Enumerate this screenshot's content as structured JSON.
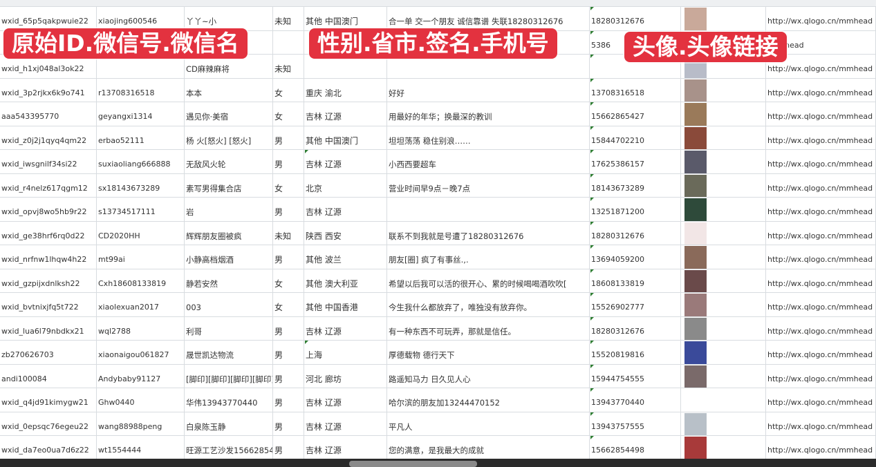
{
  "banners": [
    "原始ID.微信号.微信名",
    "性别.省市.签名.手机号",
    "头像.头像链接"
  ],
  "colors": {
    "banner": "#e3323f",
    "grid": "#d8dce0"
  },
  "rows": [
    {
      "id": "wxid_65p5qakpwuie22",
      "wx": "xiaojing600546",
      "name": "丫丫~小",
      "sex": "未知",
      "region": "其他 中国澳门",
      "sign": "合一单 交一个朋友 诚信靠谱 失联18280312676",
      "phone": "18280312676",
      "avatar": "#c9a99a",
      "url": "http://wx.qlogo.cn/mmhead"
    },
    {
      "id": "",
      "wx": "",
      "name": "",
      "sex": "",
      "region": "",
      "sign": "",
      "phone": "5386",
      "avatar": "#7b89b5",
      "url": "/mmhead"
    },
    {
      "id": "wxid_h1xj048al3ok22",
      "wx": "",
      "name": "CD麻辣麻将",
      "sex": "未知",
      "region": "",
      "sign": "",
      "phone": "",
      "avatar": "#b8bcc8",
      "url": "http://wx.qlogo.cn/mmhead"
    },
    {
      "id": "wxid_3p2rjkx6k9o741",
      "wx": "r13708316518",
      "name": "本本",
      "sex": "女",
      "region": "重庆 渝北",
      "sign": "好好",
      "phone": "13708316518",
      "avatar": "#a8928a",
      "url": "http://wx.qlogo.cn/mmhead"
    },
    {
      "id": "aaa543395770",
      "wx": "geyangxi1314",
      "name": "遇见你·美宿",
      "sex": "女",
      "region": "吉林 辽源",
      "sign": "用最好的年华；换最深的教训",
      "phone": "15662865427",
      "avatar": "#9a7a5a",
      "url": "http://wx.qlogo.cn/mmhead"
    },
    {
      "id": "wxid_z0j2j1qyq4qm22",
      "wx": "erbao52111",
      "name": "杨 火[怒火] [怒火]",
      "sex": "男",
      "region": "其他 中国澳门",
      "sign": "坦坦荡荡 稳住别浪……",
      "phone": "15844702210",
      "avatar": "#8a4a3a",
      "url": "http://wx.qlogo.cn/mmhead"
    },
    {
      "id": "wxid_iwsgnilf34si22",
      "wx": "suxiaoliang666888",
      "name": "无敌风火轮",
      "sex": "男",
      "region": "吉林 辽源",
      "sign": "小西西要超车",
      "phone": "17625386157",
      "avatar": "#5a5a6a",
      "url": "http://wx.qlogo.cn/mmhead"
    },
    {
      "id": "wxid_r4nelz617qgm12",
      "wx": "sx18143673289",
      "name": "素写男得集合店",
      "sex": "女",
      "region": "北京",
      "sign": "营业时间早9点－晚7点",
      "phone": "18143673289",
      "avatar": "#6a6a5a",
      "url": "http://wx.qlogo.cn/mmhead"
    },
    {
      "id": "wxid_opvj8wo5hb9r22",
      "wx": "s13734517111",
      "name": "岩",
      "sex": "男",
      "region": "吉林 辽源",
      "sign": "",
      "phone": "13251871200",
      "avatar": "#2e4a3a",
      "url": "http://wx.qlogo.cn/mmhead"
    },
    {
      "id": "wxid_ge38hrf6rq0d22",
      "wx": "CD2020HH",
      "name": "辉辉朋友圈被疯",
      "sex": "未知",
      "region": "陕西 西安",
      "sign": "联系不到我就是号遭了18280312676",
      "phone": "18280312676",
      "avatar": "#f2e6e6",
      "url": "http://wx.qlogo.cn/mmhead"
    },
    {
      "id": "wxid_nrfnw1lhqw4h22",
      "wx": "mt99ai",
      "name": "小静高档烟酒",
      "sex": "男",
      "region": "其他 波兰",
      "sign": "朋友[圈] 疯了有事丝.,.",
      "phone": "13694059200",
      "avatar": "#8a6a5a",
      "url": "http://wx.qlogo.cn/mmhead"
    },
    {
      "id": "wxid_gzpijxdnlksh22",
      "wx": "Cxh18608133819",
      "name": "静若安然",
      "sex": "女",
      "region": "其他 澳大利亚",
      "sign": "希望以后我可以活的很开心、累的时候喝喝酒吹吹[",
      "phone": "18608133819",
      "avatar": "#6a4a4a",
      "url": "http://wx.qlogo.cn/mmhead"
    },
    {
      "id": "wxid_bvtnixjfq5t722",
      "wx": "xiaolexuan2017",
      "name": "003",
      "sex": "女",
      "region": "其他 中国香港",
      "sign": "今生我什么都放弃了，唯独没有放弃你。",
      "phone": "15526902777",
      "avatar": "#9a7a7a",
      "url": "http://wx.qlogo.cn/mmhead"
    },
    {
      "id": "wxid_lua6l79nbdkx21",
      "wx": "wql2788",
      "name": "利哥",
      "sex": "男",
      "region": "吉林 辽源",
      "sign": "有一种东西不可玩弄，那就是信任。",
      "phone": "18280312676",
      "avatar": "#8a8a8a",
      "url": "http://wx.qlogo.cn/mmhead"
    },
    {
      "id": "zb270626703",
      "wx": "xiaonaigou061827",
      "name": "晟世凯达物流",
      "sex": "男",
      "region": "上海",
      "sign": "厚德载物 德行天下",
      "phone": "15520819816",
      "avatar": "#3a4a9a",
      "url": "http://wx.qlogo.cn/mmhead"
    },
    {
      "id": "andi100084",
      "wx": "Andybaby91127",
      "name": "[脚印][脚印][脚印][脚印]",
      "sex": "男",
      "region": "河北 廊坊",
      "sign": "路遥知马力 日久见人心",
      "phone": "15944754555",
      "avatar": "#7a6a6a",
      "url": "http://wx.qlogo.cn/mmhead"
    },
    {
      "id": "wxid_q4jd91kimygw21",
      "wx": "Ghw0440",
      "name": "华伟13943770440",
      "sex": "男",
      "region": "吉林 辽源",
      "sign": "哈尔滨的朋友加13244470152",
      "phone": "13943770440",
      "avatar": "#ffffff",
      "url": "http://wx.qlogo.cn/mmhead"
    },
    {
      "id": "wxid_0epsqc76egeu22",
      "wx": "wang88988peng",
      "name": "白泉陈玉静",
      "sex": "男",
      "region": "吉林 辽源",
      "sign": "平凡人",
      "phone": "13943757555",
      "avatar": "#b8c0c8",
      "url": "http://wx.qlogo.cn/mmhead"
    },
    {
      "id": "wxid_da7eo0ua7d6z22",
      "wx": "wt1554444",
      "name": "旺源工艺沙发15662854",
      "sex": "男",
      "region": "吉林 辽源",
      "sign": "您的满意，是我最大的成就",
      "phone": "15662854498",
      "avatar": "#a83a3a",
      "url": "http://wx.qlogo.cn/mmhead"
    }
  ]
}
